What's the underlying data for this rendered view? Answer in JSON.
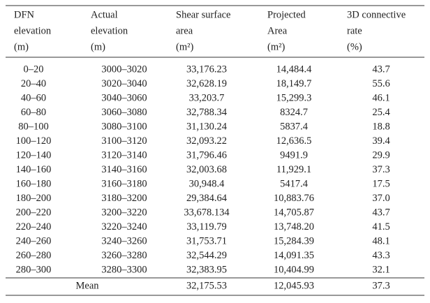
{
  "header": {
    "columns": [
      {
        "lines": [
          "DFN",
          "elevation",
          "(m)"
        ]
      },
      {
        "lines": [
          "Actual",
          "elevation",
          "(m)"
        ]
      },
      {
        "lines": [
          "Shear surface",
          "area",
          "(m²)"
        ]
      },
      {
        "lines": [
          "Projected",
          "Area",
          "(m²)"
        ]
      },
      {
        "lines": [
          "3D connective",
          "rate",
          "(%)"
        ]
      }
    ]
  },
  "table": {
    "rows": [
      [
        "0–20",
        "3000–3020",
        "33,176.23",
        "14,484.4",
        "43.7"
      ],
      [
        "20–40",
        "3020–3040",
        "32,628.19",
        "18,149.7",
        "55.6"
      ],
      [
        "40–60",
        "3040–3060",
        "33,203.7",
        "15,299.3",
        "46.1"
      ],
      [
        "60–80",
        "3060–3080",
        "32,788.34",
        "8324.7",
        "25.4"
      ],
      [
        "80–100",
        "3080–3100",
        "31,130.24",
        "5837.4",
        "18.8"
      ],
      [
        "100–120",
        "3100–3120",
        "32,093.22",
        "12,636.5",
        "39.4"
      ],
      [
        "120–140",
        "3120–3140",
        "31,796.46",
        "9491.9",
        "29.9"
      ],
      [
        "140–160",
        "3140–3160",
        "32,003.68",
        "11,929.1",
        "37.3"
      ],
      [
        "160–180",
        "3160–3180",
        "30,948.4",
        "5417.4",
        "17.5"
      ],
      [
        "180–200",
        "3180–3200",
        "29,384.64",
        "10,883.76",
        "37.0"
      ],
      [
        "200–220",
        "3200–3220",
        "33,678.134",
        "14,705.87",
        "43.7"
      ],
      [
        "220–240",
        "3220–3240",
        "33,119.79",
        "13,748.20",
        "41.5"
      ],
      [
        "240–260",
        "3240–3260",
        "31,753.71",
        "15,284.39",
        "48.1"
      ],
      [
        "260–280",
        "3260–3280",
        "32,544.29",
        "14,091.35",
        "43.3"
      ],
      [
        "280–300",
        "3280–3300",
        "32,383.95",
        "10,404.99",
        "32.1"
      ]
    ],
    "mean": {
      "label": "Mean",
      "values": [
        "32,175.53",
        "12,045.93",
        "37.3"
      ]
    }
  }
}
